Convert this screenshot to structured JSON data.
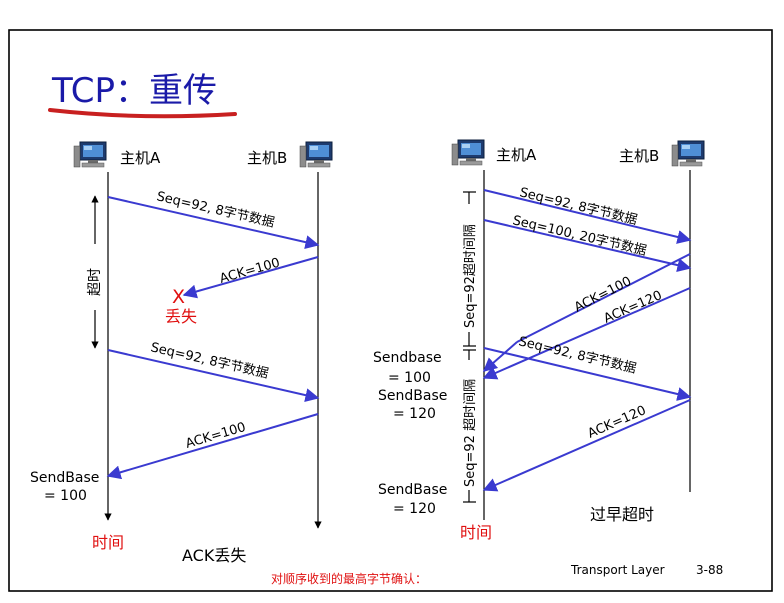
{
  "slide": {
    "title": "TCP：重传",
    "footer_course": "Transport Layer",
    "footer_page": "3-88",
    "bottom_note": "对顺序收到的最高字节确认："
  },
  "left": {
    "host_a": "主机A",
    "host_b": "主机B",
    "seg1": "Seq=92, 8字节数据",
    "ack1": "ACK=100",
    "loss_mark": "X",
    "loss_label": "丢失",
    "timeout_label": "超时",
    "seg2": "Seq=92, 8字节数据",
    "ack2": "ACK=100",
    "sendbase_line1": "SendBase",
    "sendbase_line2": "= 100",
    "time_label": "时间",
    "caption": "ACK丢失"
  },
  "right": {
    "host_a": "主机A",
    "host_b": "主机B",
    "seg1": "Seq=92, 8字节数据",
    "seg2": "Seq=100, 20字节数据",
    "ack100": "ACK=100",
    "ack120": "ACK=120",
    "timer1": "Seq=92超时间隔",
    "timer2": "Seq=92 超时间隔",
    "sb1_line1": "Sendbase",
    "sb1_line2": "= 100",
    "sb2_line1": "SendBase",
    "sb2_line2": "= 120",
    "seg3": "Seq=92, 8字节数据",
    "ack120_b": "ACK=120",
    "sb3_line1": "SendBase",
    "sb3_line2": "= 120",
    "time_label": "时间",
    "caption": "过早超时"
  },
  "colors": {
    "arrow": "#3a3ad0",
    "title": "#1a1aa8",
    "underline": "#c82020",
    "red_text": "#e01010"
  }
}
